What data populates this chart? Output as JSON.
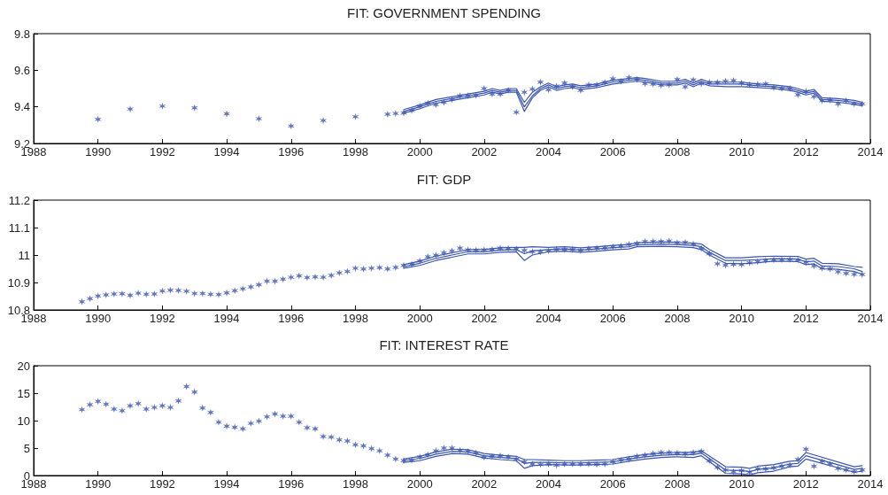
{
  "chart_data": [
    {
      "type": "scatter",
      "title": "FIT: GOVERNMENT SPENDING",
      "xlim": [
        1988,
        2014
      ],
      "xticks": [
        1988,
        1990,
        1992,
        1994,
        1996,
        1998,
        2000,
        2002,
        2004,
        2006,
        2008,
        2010,
        2012,
        2014
      ],
      "ylim": [
        9.2,
        9.8
      ],
      "yticks": [
        9.2,
        9.4,
        9.6,
        9.8
      ],
      "grid": false,
      "series": [
        {
          "type": "scatter",
          "marker": "cross",
          "color": "#3b55b0",
          "x": [
            1990,
            1991,
            1992,
            1993,
            1994,
            1995,
            1996,
            1997,
            1998,
            1999,
            1999.25,
            1999.5,
            1999.75,
            2000,
            2000.25,
            2000.5,
            2000.75,
            2001,
            2001.25,
            2001.5,
            2001.75,
            2002,
            2002.25,
            2002.5,
            2002.75,
            2003,
            2003.25,
            2003.5,
            2003.75,
            2004,
            2004.25,
            2004.5,
            2004.75,
            2005,
            2005.25,
            2005.5,
            2005.75,
            2006,
            2006.25,
            2006.5,
            2006.75,
            2007,
            2007.25,
            2007.5,
            2007.75,
            2008,
            2008.25,
            2008.5,
            2008.75,
            2009,
            2009.25,
            2009.5,
            2009.75,
            2010,
            2010.25,
            2010.5,
            2010.75,
            2011,
            2011.25,
            2011.5,
            2011.75,
            2012,
            2012.25,
            2012.5,
            2012.75,
            2013,
            2013.25,
            2013.5,
            2013.75
          ],
          "values": [
            9.332,
            9.388,
            9.404,
            9.395,
            9.362,
            9.335,
            9.295,
            9.325,
            9.346,
            9.36,
            9.364,
            9.367,
            9.38,
            9.404,
            9.42,
            9.412,
            9.425,
            9.44,
            9.46,
            9.46,
            9.463,
            9.5,
            9.47,
            9.47,
            9.49,
            9.37,
            9.48,
            9.497,
            9.535,
            9.494,
            9.513,
            9.53,
            9.51,
            9.49,
            9.52,
            9.52,
            9.534,
            9.553,
            9.54,
            9.56,
            9.55,
            9.527,
            9.524,
            9.518,
            9.52,
            9.55,
            9.51,
            9.547,
            9.526,
            9.534,
            9.534,
            9.54,
            9.544,
            9.53,
            9.52,
            9.523,
            9.526,
            9.505,
            9.5,
            9.5,
            9.466,
            9.485,
            9.456,
            9.434,
            9.437,
            9.416,
            9.434,
            9.416,
            9.416
          ]
        },
        {
          "type": "line",
          "marker": "none",
          "color": "#3b55b0",
          "x": [
            1999.5,
            2000,
            2000.5,
            2001,
            2001.5,
            2002,
            2002.25,
            2002.5,
            2002.75,
            2003,
            2003.25,
            2003.5,
            2003.75,
            2004,
            2004.25,
            2004.5,
            2004.75,
            2005,
            2005.5,
            2006,
            2006.5,
            2006.75,
            2007,
            2007.5,
            2008,
            2008.25,
            2008.5,
            2008.75,
            2009,
            2009.5,
            2010,
            2010.5,
            2011,
            2011.5,
            2011.75,
            2012,
            2012.25,
            2012.5,
            2013,
            2013.5,
            2013.75
          ],
          "values": [
            9.375,
            9.4,
            9.43,
            9.445,
            9.46,
            9.475,
            9.49,
            9.48,
            9.49,
            9.49,
            9.4,
            9.46,
            9.5,
            9.52,
            9.5,
            9.51,
            9.515,
            9.505,
            9.515,
            9.535,
            9.545,
            9.55,
            9.545,
            9.53,
            9.53,
            9.54,
            9.52,
            9.54,
            9.525,
            9.525,
            9.525,
            9.515,
            9.51,
            9.5,
            9.49,
            9.475,
            9.485,
            9.44,
            9.435,
            9.425,
            9.415
          ]
        },
        {
          "type": "line",
          "marker": "none",
          "color": "#3b55b0",
          "x": [
            1999.5,
            2000,
            2000.5,
            2001,
            2001.5,
            2002,
            2002.25,
            2002.5,
            2002.75,
            2003,
            2003.25,
            2003.5,
            2003.75,
            2004,
            2004.25,
            2004.5,
            2004.75,
            2005,
            2005.5,
            2006,
            2006.5,
            2006.75,
            2007,
            2007.5,
            2008,
            2008.25,
            2008.5,
            2008.75,
            2009,
            2009.5,
            2010,
            2010.5,
            2011,
            2011.5,
            2011.75,
            2012,
            2012.25,
            2012.5,
            2013,
            2013.5,
            2013.75
          ],
          "values": [
            9.385,
            9.41,
            9.44,
            9.455,
            9.47,
            9.485,
            9.5,
            9.49,
            9.5,
            9.5,
            9.425,
            9.48,
            9.51,
            9.53,
            9.51,
            9.52,
            9.525,
            9.515,
            9.525,
            9.545,
            9.555,
            9.56,
            9.555,
            9.54,
            9.54,
            9.55,
            9.53,
            9.55,
            9.535,
            9.535,
            9.535,
            9.525,
            9.52,
            9.51,
            9.5,
            9.485,
            9.495,
            9.45,
            9.445,
            9.435,
            9.425
          ]
        },
        {
          "type": "line",
          "marker": "none",
          "color": "#3b55b0",
          "x": [
            1999.5,
            2000,
            2000.5,
            2001,
            2001.5,
            2002,
            2002.25,
            2002.5,
            2002.75,
            2003,
            2003.25,
            2003.5,
            2003.75,
            2004,
            2004.25,
            2004.5,
            2004.75,
            2005,
            2005.5,
            2006,
            2006.5,
            2006.75,
            2007,
            2007.5,
            2008,
            2008.25,
            2008.5,
            2008.75,
            2009,
            2009.5,
            2010,
            2010.5,
            2011,
            2011.5,
            2011.75,
            2012,
            2012.25,
            2012.5,
            2013,
            2013.5,
            2013.75
          ],
          "values": [
            9.365,
            9.39,
            9.42,
            9.435,
            9.45,
            9.465,
            9.48,
            9.47,
            9.48,
            9.48,
            9.375,
            9.45,
            9.49,
            9.51,
            9.49,
            9.5,
            9.505,
            9.495,
            9.505,
            9.525,
            9.535,
            9.54,
            9.535,
            9.52,
            9.52,
            9.53,
            9.51,
            9.53,
            9.515,
            9.51,
            9.51,
            9.505,
            9.5,
            9.49,
            9.48,
            9.465,
            9.475,
            9.43,
            9.425,
            9.415,
            9.405
          ]
        }
      ]
    },
    {
      "type": "scatter",
      "title": "FIT: GDP",
      "xlim": [
        1988,
        2014
      ],
      "xticks": [
        1988,
        1990,
        1992,
        1994,
        1996,
        1998,
        2000,
        2002,
        2004,
        2006,
        2008,
        2010,
        2012,
        2014
      ],
      "ylim": [
        10.8,
        11.2
      ],
      "yticks": [
        10.8,
        10.9,
        11,
        11.1,
        11.2
      ],
      "grid": false,
      "series": [
        {
          "type": "scatter",
          "marker": "cross",
          "color": "#3b55b0",
          "x": [
            1989.5,
            1989.75,
            1990,
            1990.25,
            1990.5,
            1990.75,
            1991,
            1991.25,
            1991.5,
            1991.75,
            1992,
            1992.25,
            1992.5,
            1992.75,
            1993,
            1993.25,
            1993.5,
            1993.75,
            1994,
            1994.25,
            1994.5,
            1994.75,
            1995,
            1995.25,
            1995.5,
            1995.75,
            1996,
            1996.25,
            1996.5,
            1996.75,
            1997,
            1997.25,
            1997.5,
            1997.75,
            1998,
            1998.25,
            1998.5,
            1998.75,
            1999,
            1999.25,
            1999.5,
            1999.75,
            2000,
            2000.25,
            2000.5,
            2000.75,
            2001,
            2001.25,
            2001.5,
            2001.75,
            2002,
            2002.25,
            2002.5,
            2002.75,
            2003,
            2003.25,
            2003.5,
            2003.75,
            2004,
            2004.25,
            2004.5,
            2004.75,
            2005,
            2005.25,
            2005.5,
            2005.75,
            2006,
            2006.25,
            2006.5,
            2006.75,
            2007,
            2007.25,
            2007.5,
            2007.75,
            2008,
            2008.25,
            2008.5,
            2008.75,
            2009,
            2009.25,
            2009.5,
            2009.75,
            2010,
            2010.25,
            2010.5,
            2010.75,
            2011,
            2011.25,
            2011.5,
            2011.75,
            2012,
            2012.25,
            2012.5,
            2012.75,
            2013,
            2013.25,
            2013.5,
            2013.75
          ],
          "values": [
            10.83,
            10.841,
            10.851,
            10.855,
            10.858,
            10.859,
            10.853,
            10.861,
            10.857,
            10.858,
            10.869,
            10.872,
            10.871,
            10.868,
            10.86,
            10.86,
            10.857,
            10.856,
            10.862,
            10.87,
            10.877,
            10.884,
            10.892,
            10.905,
            10.905,
            10.912,
            10.919,
            10.924,
            10.918,
            10.92,
            10.919,
            10.926,
            10.935,
            10.94,
            10.952,
            10.949,
            10.952,
            10.954,
            10.949,
            10.955,
            10.962,
            10.966,
            10.978,
            10.994,
            10.999,
            11.008,
            11.015,
            11.025,
            11.019,
            11.018,
            11.019,
            11.02,
            11.025,
            11.024,
            11.022,
            11.017,
            11.012,
            11.011,
            11.015,
            11.02,
            11.02,
            11.02,
            11.017,
            11.023,
            11.025,
            11.026,
            11.03,
            11.033,
            11.039,
            11.042,
            11.049,
            11.049,
            11.049,
            11.051,
            11.045,
            11.046,
            11.04,
            11.024,
            11.005,
            10.968,
            10.963,
            10.966,
            10.965,
            10.972,
            10.976,
            10.98,
            10.982,
            10.983,
            10.984,
            10.982,
            10.974,
            10.96,
            10.952,
            10.949,
            10.939,
            10.933,
            10.93,
            10.929
          ]
        },
        {
          "type": "line",
          "marker": "none",
          "color": "#3b55b0",
          "x": [
            1999.5,
            2000,
            2000.5,
            2001,
            2001.5,
            2002,
            2002.5,
            2003,
            2003.25,
            2003.5,
            2004,
            2004.5,
            2005,
            2005.5,
            2006,
            2006.5,
            2006.75,
            2007.5,
            2008,
            2008.5,
            2008.75,
            2009,
            2009.5,
            2010,
            2010.5,
            2011,
            2011.75,
            2012,
            2012.25,
            2012.5,
            2013,
            2013.5,
            2013.75
          ],
          "values": [
            10.958,
            10.97,
            10.988,
            11.0,
            11.012,
            11.012,
            11.018,
            11.02,
            11.005,
            11.015,
            11.02,
            11.022,
            11.018,
            11.022,
            11.027,
            11.03,
            11.037,
            11.04,
            11.038,
            11.035,
            11.03,
            11.01,
            10.98,
            10.98,
            10.983,
            10.987,
            10.985,
            10.975,
            10.978,
            10.96,
            10.958,
            10.95,
            10.94
          ]
        },
        {
          "type": "line",
          "marker": "none",
          "color": "#3b55b0",
          "x": [
            1999.5,
            2000,
            2000.5,
            2001,
            2001.5,
            2002,
            2002.5,
            2003,
            2003.25,
            2003.5,
            2004,
            2004.5,
            2005,
            2005.5,
            2006,
            2006.5,
            2006.75,
            2007.5,
            2008,
            2008.5,
            2008.75,
            2009,
            2009.5,
            2010,
            2010.5,
            2011,
            2011.75,
            2012,
            2012.25,
            2012.5,
            2013,
            2013.5,
            2013.75
          ],
          "values": [
            10.965,
            10.978,
            10.996,
            11.008,
            11.02,
            11.02,
            11.026,
            11.028,
            11.028,
            11.03,
            11.028,
            11.03,
            11.026,
            11.03,
            11.035,
            11.038,
            11.045,
            11.048,
            11.046,
            11.043,
            11.04,
            11.02,
            10.99,
            10.99,
            10.994,
            10.996,
            10.995,
            10.985,
            10.988,
            10.97,
            10.968,
            10.958,
            10.955
          ]
        },
        {
          "type": "line",
          "marker": "none",
          "color": "#3b55b0",
          "x": [
            1999.5,
            2000,
            2000.5,
            2001,
            2001.5,
            2002,
            2002.5,
            2003,
            2003.25,
            2003.5,
            2004,
            2004.5,
            2005,
            2005.5,
            2006,
            2006.5,
            2006.75,
            2007.5,
            2008,
            2008.5,
            2008.75,
            2009,
            2009.5,
            2010,
            2010.5,
            2011,
            2011.75,
            2012,
            2012.25,
            2012.5,
            2013,
            2013.5,
            2013.75
          ],
          "values": [
            10.952,
            10.962,
            10.98,
            10.992,
            11.004,
            11.004,
            11.01,
            11.012,
            10.98,
            11.0,
            11.012,
            11.014,
            11.01,
            11.014,
            11.019,
            11.022,
            11.03,
            11.032,
            11.03,
            11.027,
            11.02,
            11.0,
            10.97,
            10.968,
            10.972,
            10.978,
            10.976,
            10.965,
            10.968,
            10.95,
            10.948,
            10.94,
            10.93
          ]
        }
      ]
    },
    {
      "type": "scatter",
      "title": "FIT: INTEREST RATE",
      "xlim": [
        1988,
        2014
      ],
      "xticks": [
        1988,
        1990,
        1992,
        1994,
        1996,
        1998,
        2000,
        2002,
        2004,
        2006,
        2008,
        2010,
        2012,
        2014
      ],
      "ylim": [
        0,
        20
      ],
      "yticks": [
        0,
        5,
        10,
        15,
        20
      ],
      "grid": false,
      "series": [
        {
          "type": "scatter",
          "marker": "cross",
          "color": "#3b55b0",
          "x": [
            1989.5,
            1989.75,
            1990,
            1990.25,
            1990.5,
            1990.75,
            1991,
            1991.25,
            1991.5,
            1991.75,
            1992,
            1992.25,
            1992.5,
            1992.75,
            1993,
            1993.25,
            1993.5,
            1993.75,
            1994,
            1994.25,
            1994.5,
            1994.75,
            1995,
            1995.25,
            1995.5,
            1995.75,
            1996,
            1996.25,
            1996.5,
            1996.75,
            1997,
            1997.25,
            1997.5,
            1997.75,
            1998,
            1998.25,
            1998.5,
            1998.75,
            1999,
            1999.25,
            1999.5,
            1999.75,
            2000,
            2000.25,
            2000.5,
            2000.75,
            2001,
            2001.25,
            2001.5,
            2001.75,
            2002,
            2002.25,
            2002.5,
            2002.75,
            2003,
            2003.25,
            2003.5,
            2003.75,
            2004,
            2004.25,
            2004.5,
            2004.75,
            2005,
            2005.25,
            2005.5,
            2005.75,
            2006,
            2006.25,
            2006.5,
            2006.75,
            2007,
            2007.25,
            2007.5,
            2007.75,
            2008,
            2008.25,
            2008.5,
            2008.75,
            2009,
            2009.25,
            2009.5,
            2009.75,
            2010,
            2010.25,
            2010.5,
            2010.75,
            2011,
            2011.25,
            2011.5,
            2011.75,
            2012,
            2012.25,
            2012.5,
            2012.75,
            2013,
            2013.25,
            2013.5,
            2013.75
          ],
          "values": [
            12.0,
            12.9,
            13.5,
            13.0,
            12.1,
            11.8,
            12.7,
            13.1,
            12.1,
            12.4,
            12.7,
            12.4,
            13.6,
            16.2,
            15.2,
            12.3,
            11.5,
            9.7,
            9.0,
            8.8,
            8.5,
            9.5,
            9.9,
            10.7,
            11.2,
            10.8,
            10.8,
            9.7,
            8.7,
            8.5,
            7.1,
            7.0,
            6.5,
            6.3,
            5.6,
            5.4,
            4.9,
            4.5,
            3.7,
            3.0,
            2.7,
            2.8,
            3.4,
            3.8,
            4.5,
            5.0,
            5.0,
            4.6,
            4.4,
            4.1,
            3.3,
            3.5,
            3.6,
            3.4,
            3.0,
            2.5,
            2.1,
            2.0,
            2.1,
            1.9,
            2.1,
            2.1,
            2.1,
            2.1,
            2.0,
            2.1,
            2.5,
            2.8,
            3.0,
            3.5,
            3.7,
            4.0,
            4.2,
            4.2,
            4.1,
            3.9,
            4.2,
            4.4,
            2.7,
            1.5,
            1.0,
            0.7,
            0.9,
            0.6,
            1.2,
            1.2,
            1.4,
            1.7,
            1.9,
            2.9,
            4.8,
            1.7,
            2.6,
            2.1,
            1.3,
            1.0,
            0.7,
            1.0
          ]
        },
        {
          "type": "line",
          "marker": "none",
          "color": "#3b55b0",
          "x": [
            1999.5,
            2000,
            2000.5,
            2001,
            2001.5,
            2002,
            2002.5,
            2003,
            2003.25,
            2003.5,
            2004,
            2004.5,
            2005,
            2005.5,
            2006,
            2006.5,
            2007,
            2007.5,
            2008,
            2008.5,
            2008.75,
            2009.5,
            2010,
            2010.25,
            2010.5,
            2011,
            2011.5,
            2011.75,
            2012,
            2013.5,
            2013.75
          ],
          "values": [
            2.7,
            3.1,
            3.9,
            4.4,
            4.3,
            3.6,
            3.3,
            3.1,
            2.2,
            2.4,
            2.4,
            2.3,
            2.3,
            2.4,
            2.5,
            3.0,
            3.4,
            3.7,
            3.8,
            3.8,
            4.1,
            1.0,
            0.9,
            0.7,
            1.1,
            1.4,
            2.1,
            2.2,
            3.6,
            1.1,
            1.3
          ]
        },
        {
          "type": "line",
          "marker": "none",
          "color": "#3b55b0",
          "x": [
            1999.5,
            2000,
            2000.5,
            2001,
            2001.5,
            2002,
            2002.5,
            2003,
            2003.25,
            2003.5,
            2004,
            2004.5,
            2005,
            2005.5,
            2006,
            2006.5,
            2007,
            2007.5,
            2008,
            2008.5,
            2008.75,
            2009.5,
            2010,
            2010.25,
            2010.5,
            2011,
            2011.5,
            2011.75,
            2012,
            2013.5,
            2013.75
          ],
          "values": [
            3.0,
            3.5,
            4.3,
            4.8,
            4.7,
            4.0,
            3.7,
            3.5,
            2.9,
            2.9,
            2.8,
            2.7,
            2.7,
            2.8,
            2.9,
            3.4,
            3.8,
            4.1,
            4.2,
            4.2,
            4.5,
            1.6,
            1.5,
            1.3,
            1.7,
            2.0,
            2.6,
            2.7,
            4.2,
            1.6,
            1.8
          ]
        },
        {
          "type": "line",
          "marker": "none",
          "color": "#3b55b0",
          "x": [
            1999.5,
            2000,
            2000.5,
            2001,
            2001.5,
            2002,
            2002.5,
            2003,
            2003.25,
            2003.5,
            2004,
            2004.5,
            2005,
            2005.5,
            2006,
            2006.5,
            2007,
            2007.5,
            2008,
            2008.5,
            2008.75,
            2009.5,
            2010,
            2010.25,
            2010.5,
            2011,
            2011.5,
            2011.75,
            2012,
            2013.5,
            2013.75
          ],
          "values": [
            2.4,
            2.7,
            3.5,
            4.0,
            3.9,
            3.2,
            2.9,
            2.7,
            1.3,
            1.8,
            2.0,
            1.9,
            1.9,
            2.0,
            2.1,
            2.6,
            3.0,
            3.3,
            3.4,
            3.3,
            3.6,
            0.4,
            0.3,
            0.1,
            0.5,
            0.8,
            1.6,
            1.7,
            3.0,
            0.6,
            0.8
          ]
        }
      ]
    }
  ]
}
